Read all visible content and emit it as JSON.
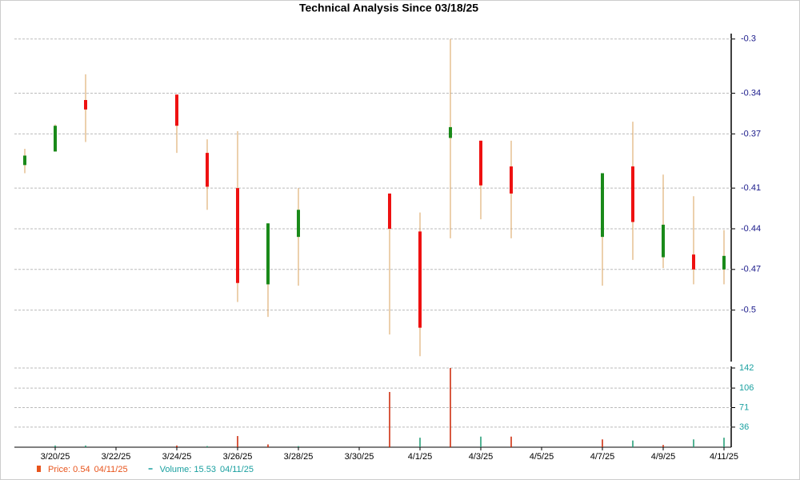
{
  "chart_data": {
    "type": "candlestick",
    "title": "Technical Analysis Since 03/18/25",
    "categories": [
      null,
      "3/20/25",
      null,
      "3/22/25",
      null,
      "3/24/25",
      null,
      "3/26/25",
      null,
      "3/28/25",
      null,
      "3/30/25",
      null,
      "4/1/25",
      null,
      "4/3/25",
      null,
      "4/5/25",
      null,
      "4/7/25",
      null,
      "4/9/25",
      null,
      "4/11/25"
    ],
    "open": [
      -0.393,
      -0.383,
      -0.345,
      null,
      null,
      -0.341,
      -0.384,
      -0.41,
      -0.481,
      -0.446,
      null,
      null,
      -0.414,
      -0.442,
      -0.373,
      -0.375,
      -0.394,
      null,
      null,
      -0.446,
      -0.394,
      -0.461,
      -0.459,
      -0.47
    ],
    "high": [
      -0.381,
      -0.363,
      -0.326,
      null,
      null,
      -0.341,
      -0.374,
      -0.368,
      -0.436,
      -0.41,
      null,
      null,
      -0.414,
      -0.428,
      -0.3,
      -0.375,
      -0.375,
      null,
      null,
      -0.399,
      -0.361,
      -0.4,
      -0.416,
      -0.441
    ],
    "low": [
      -0.399,
      -0.383,
      -0.376,
      null,
      null,
      -0.384,
      -0.426,
      -0.494,
      -0.505,
      -0.482,
      null,
      null,
      -0.518,
      -0.534,
      -0.447,
      -0.433,
      -0.447,
      null,
      null,
      -0.482,
      -0.463,
      -0.469,
      -0.481,
      -0.481
    ],
    "close": [
      -0.386,
      -0.364,
      -0.352,
      null,
      null,
      -0.364,
      -0.409,
      -0.48,
      -0.436,
      -0.426,
      null,
      null,
      -0.44,
      -0.513,
      -0.365,
      -0.408,
      -0.414,
      null,
      null,
      -0.399,
      -0.435,
      -0.437,
      -0.47,
      -0.46
    ],
    "up_color": "#1a8a1a",
    "down_color": "#ee1111",
    "wick_color": "#d9a05b",
    "ylim": [
      -0.538,
      -0.296
    ],
    "yticks": [
      -0.3,
      -0.34,
      -0.37,
      -0.41,
      -0.44,
      -0.47,
      -0.5
    ],
    "volume": [
      null,
      3,
      3,
      null,
      null,
      3,
      2,
      20,
      5,
      2,
      null,
      null,
      99,
      17,
      142,
      19,
      19,
      null,
      null,
      14,
      12,
      4,
      14,
      17
    ],
    "volume_colors": [
      null,
      "#1a9a70",
      "#1a9a70",
      null,
      null,
      "#cc2200",
      "#1a9a70",
      "#cc2200",
      "#cc2200",
      "#1a9a70",
      null,
      null,
      "#cc2200",
      "#1a9a70",
      "#cc2200",
      "#1a9a70",
      "#cc2200",
      null,
      null,
      "#cc2200",
      "#1a9a70",
      "#cc2200",
      "#1a9a70",
      "#1a9a70"
    ],
    "y2lim": [
      0,
      142
    ],
    "y2ticks": [
      36,
      71,
      106,
      142
    ],
    "grid": true,
    "legend": [
      {
        "label": "Price: 0.54",
        "date": "04/11/25",
        "color": "#e8541c"
      },
      {
        "label": "Volume: 15.53",
        "date": "04/11/25",
        "color": "#1aa0a0"
      }
    ]
  }
}
